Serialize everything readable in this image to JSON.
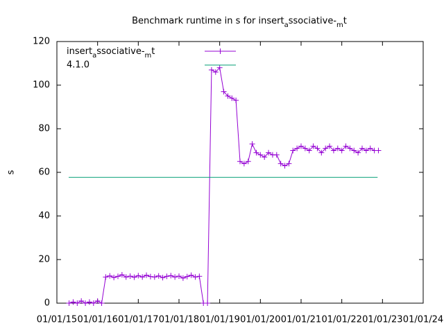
{
  "chart_data": {
    "type": "line",
    "title": [
      "Benchmark runtime in s for insert",
      "a",
      "ssociative-",
      "m",
      "t"
    ],
    "ylabel": "s",
    "xlim": [
      2015,
      2024
    ],
    "xticks": [
      {
        "value": 2015,
        "label": "01/01/15"
      },
      {
        "value": 2016,
        "label": "01/01/16"
      },
      {
        "value": 2017,
        "label": "01/01/17"
      },
      {
        "value": 2018,
        "label": "01/01/18"
      },
      {
        "value": 2019,
        "label": "01/01/19"
      },
      {
        "value": 2020,
        "label": "01/01/20"
      },
      {
        "value": 2021,
        "label": "01/01/21"
      },
      {
        "value": 2022,
        "label": "01/01/22"
      },
      {
        "value": 2023,
        "label": "01/01/23"
      },
      {
        "value": 2024,
        "label": "01/01/24"
      }
    ],
    "ylim": [
      0,
      120
    ],
    "yticks": [
      0,
      20,
      40,
      60,
      80,
      100,
      120
    ],
    "series": [
      {
        "name": [
          "insert",
          "a",
          "ssociative-",
          "m",
          "t"
        ],
        "color": "#9400d3",
        "markers": true,
        "x": [
          2015.3,
          2015.4,
          2015.5,
          2015.6,
          2015.7,
          2015.8,
          2015.9,
          2016.0,
          2016.1,
          2016.2,
          2016.3,
          2016.4,
          2016.5,
          2016.6,
          2016.7,
          2016.8,
          2016.9,
          2017.0,
          2017.1,
          2017.2,
          2017.3,
          2017.4,
          2017.5,
          2017.6,
          2017.7,
          2017.8,
          2017.9,
          2018.0,
          2018.1,
          2018.2,
          2018.3,
          2018.4,
          2018.5,
          2018.6,
          2018.7,
          2018.8,
          2018.9,
          2019.0,
          2019.1,
          2019.2,
          2019.3,
          2019.4,
          2019.5,
          2019.6,
          2019.7,
          2019.8,
          2019.9,
          2020.0,
          2020.1,
          2020.2,
          2020.3,
          2020.4,
          2020.5,
          2020.6,
          2020.7,
          2020.8,
          2020.9,
          2021.0,
          2021.1,
          2021.2,
          2021.3,
          2021.4,
          2021.5,
          2021.6,
          2021.7,
          2021.8,
          2021.9,
          2022.0,
          2022.1,
          2022.2,
          2022.3,
          2022.4,
          2022.5,
          2022.6,
          2022.7,
          2022.8,
          2022.9
        ],
        "values": [
          0,
          0.5,
          0,
          1,
          0,
          0.5,
          0,
          1,
          0,
          12,
          12.5,
          11.8,
          12.3,
          13,
          12,
          12.4,
          11.9,
          12.6,
          12,
          12.8,
          12.2,
          12,
          12.5,
          11.7,
          12.3,
          12.6,
          12,
          12.4,
          11.5,
          12.2,
          12.8,
          12,
          12.3,
          0,
          0,
          107,
          106,
          108,
          97,
          95,
          94,
          93,
          65,
          64,
          65,
          73,
          69,
          68,
          67,
          69,
          68,
          68,
          64,
          63,
          64,
          70,
          71,
          72,
          71,
          70,
          72,
          71,
          69,
          71,
          72,
          70,
          71,
          70,
          72,
          71,
          70,
          69,
          71,
          70,
          71,
          70,
          70
        ]
      },
      {
        "name": "4.1.0",
        "color": "#009e73",
        "markers": false,
        "x": [
          2015.29,
          2022.88
        ],
        "values": [
          57.7,
          57.7
        ]
      }
    ]
  }
}
